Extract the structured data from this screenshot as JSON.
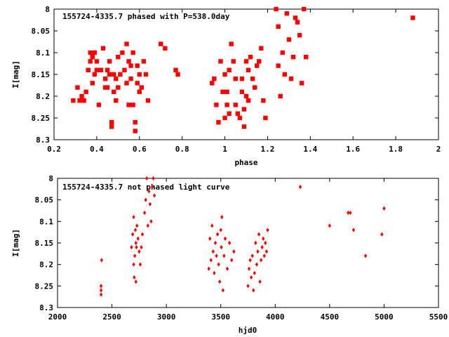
{
  "colors": {
    "marker": "#ff0000",
    "axis": "#000000",
    "background": "#ffffff"
  },
  "chart_data": [
    {
      "type": "scatter",
      "title": "155724-4335.7 phased with P=538.0day",
      "xlabel": "phase",
      "ylabel": "I[mag]",
      "xlim": [
        0.2,
        2
      ],
      "ylim": [
        8.3,
        8
      ],
      "y_inverted": true,
      "grid": false,
      "legend": "none",
      "x_ticks": [
        "0.2",
        "0.4",
        "0.6",
        "0.8",
        "1",
        "1.2",
        "1.4",
        "1.6",
        "1.8",
        "2"
      ],
      "y_ticks": [
        "8",
        "8.05",
        "8.1",
        "8.15",
        "8.2",
        "8.25",
        "8.3"
      ],
      "series": [
        {
          "x": [
            0.29,
            0.31,
            0.32,
            0.33,
            0.34,
            0.35,
            0.36,
            0.37,
            0.37,
            0.38,
            0.38,
            0.39,
            0.39,
            0.4,
            0.4,
            0.41,
            0.42,
            0.43,
            0.44,
            0.44,
            0.45,
            0.45,
            0.46,
            0.46,
            0.47,
            0.47,
            0.48,
            0.48,
            0.49,
            0.49,
            0.5,
            0.5,
            0.51,
            0.52,
            0.53,
            0.54,
            0.54,
            0.55,
            0.55,
            0.56,
            0.56,
            0.57,
            0.57,
            0.58,
            0.58,
            0.59,
            0.59,
            0.6,
            0.6,
            0.61,
            0.62,
            0.63,
            0.64,
            0.7,
            0.72,
            0.77,
            0.78,
            0.94,
            0.95,
            0.96,
            0.97,
            0.98,
            0.99,
            1.0,
            1.0,
            1.01,
            1.01,
            1.02,
            1.02,
            1.03,
            1.04,
            1.05,
            1.05,
            1.06,
            1.07,
            1.08,
            1.08,
            1.09,
            1.09,
            1.1,
            1.1,
            1.11,
            1.11,
            1.12,
            1.13,
            1.14,
            1.15,
            1.16,
            1.17,
            1.18,
            1.19,
            1.24,
            1.25,
            1.25,
            1.26,
            1.27,
            1.28,
            1.29,
            1.3,
            1.31,
            1.32,
            1.33,
            1.34,
            1.35,
            1.36,
            1.37,
            1.38,
            1.88
          ],
          "y": [
            8.21,
            8.18,
            8.21,
            8.2,
            8.21,
            8.19,
            8.14,
            8.12,
            8.1,
            8.17,
            8.11,
            8.15,
            8.1,
            8.12,
            8.14,
            8.22,
            8.14,
            8.09,
            8.16,
            8.18,
            8.14,
            8.18,
            8.12,
            8.15,
            8.26,
            8.27,
            8.15,
            8.19,
            8.16,
            8.21,
            8.18,
            8.11,
            8.15,
            8.1,
            8.14,
            8.08,
            8.17,
            8.12,
            8.22,
            8.13,
            8.16,
            8.22,
            8.1,
            8.26,
            8.28,
            8.13,
            8.17,
            8.15,
            8.19,
            8.18,
            8.12,
            8.15,
            8.21,
            8.08,
            8.09,
            8.14,
            8.15,
            8.17,
            8.16,
            8.22,
            8.26,
            8.12,
            8.19,
            8.15,
            8.25,
            8.19,
            8.22,
            8.14,
            8.24,
            8.08,
            8.12,
            8.16,
            8.22,
            8.24,
            8.25,
            8.19,
            8.16,
            8.23,
            8.27,
            8.12,
            8.2,
            8.14,
            8.21,
            8.11,
            8.16,
            8.18,
            8.13,
            8.12,
            8.09,
            8.21,
            8.25,
            8.0,
            8.04,
            8.13,
            8.2,
            8.1,
            8.15,
            8.01,
            8.07,
            8.16,
            8.11,
            8.02,
            8.03,
            8.06,
            8.17,
            8.0,
            8.11,
            8.02
          ]
        }
      ]
    },
    {
      "type": "scatter",
      "title": "155724-4335.7 not phased light curve",
      "xlabel": "hjd0",
      "ylabel": "I[mag]",
      "xlim": [
        2000,
        5500
      ],
      "ylim": [
        8.3,
        8
      ],
      "y_inverted": true,
      "grid": false,
      "legend": "none",
      "x_ticks": [
        "2000",
        "2500",
        "3000",
        "3500",
        "4000",
        "4500",
        "5000",
        "5500"
      ],
      "y_ticks": [
        "8",
        "8.05",
        "8.1",
        "8.15",
        "8.2",
        "8.25",
        "8.3"
      ],
      "series": [
        {
          "x": [
            2400,
            2400,
            2400,
            2405,
            2680,
            2690,
            2700,
            2700,
            2705,
            2710,
            2715,
            2720,
            2720,
            2725,
            2730,
            2740,
            2750,
            2760,
            2770,
            2780,
            2800,
            2810,
            2820,
            2830,
            2840,
            2850,
            2860,
            2870,
            2880,
            2890,
            3390,
            3400,
            3410,
            3420,
            3430,
            3440,
            3450,
            3460,
            3470,
            3480,
            3490,
            3500,
            3505,
            3510,
            3520,
            3530,
            3540,
            3560,
            3580,
            3600,
            3620,
            3750,
            3760,
            3770,
            3780,
            3790,
            3800,
            3810,
            3820,
            3830,
            3840,
            3850,
            3860,
            3870,
            3880,
            3890,
            3900,
            3910,
            3920,
            3930,
            4230,
            4500,
            4670,
            4690,
            4720,
            4830,
            4980,
            5000
          ],
          "y": [
            8.26,
            8.27,
            8.25,
            8.19,
            8.16,
            8.13,
            8.09,
            8.2,
            8.23,
            8.18,
            8.12,
            8.24,
            8.15,
            8.16,
            8.11,
            8.14,
            8.17,
            8.2,
            8.16,
            8.13,
            8.08,
            8.05,
            8.0,
            8.11,
            8.03,
            8.06,
            8.1,
            8.02,
            8.0,
            8.04,
            8.21,
            8.14,
            8.19,
            8.11,
            8.17,
            8.22,
            8.15,
            8.18,
            8.13,
            8.2,
            8.24,
            8.12,
            8.16,
            8.09,
            8.26,
            8.18,
            8.14,
            8.21,
            8.15,
            8.19,
            8.17,
            8.25,
            8.21,
            8.19,
            8.23,
            8.18,
            8.26,
            8.22,
            8.15,
            8.2,
            8.17,
            8.13,
            8.24,
            8.19,
            8.16,
            8.14,
            8.18,
            8.15,
            8.17,
            8.12,
            8.02,
            8.11,
            8.08,
            8.08,
            8.12,
            8.18,
            8.13,
            8.07
          ]
        }
      ]
    }
  ]
}
